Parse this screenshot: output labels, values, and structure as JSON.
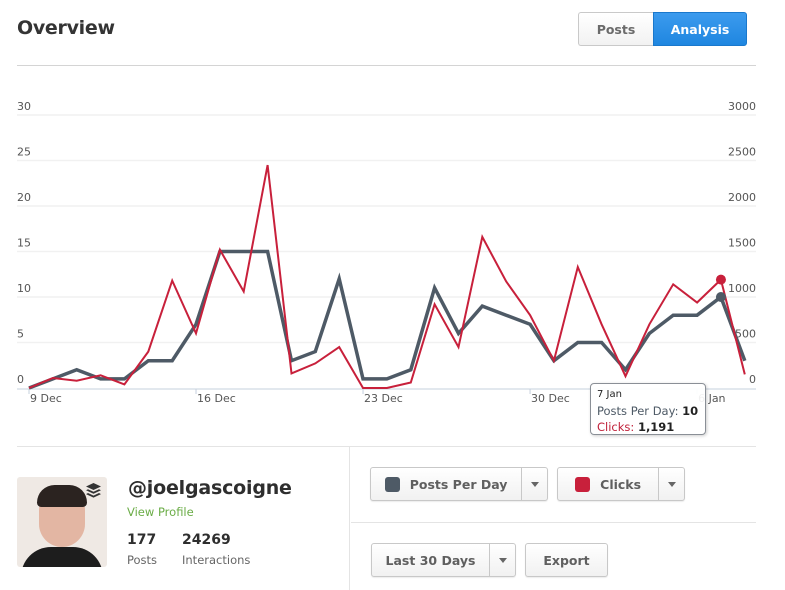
{
  "header": {
    "title": "Overview",
    "tabs": [
      {
        "label": "Posts",
        "active": false
      },
      {
        "label": "Analysis",
        "active": true
      }
    ]
  },
  "colors": {
    "posts_series": "#4e5a66",
    "clicks_series": "#c8203b",
    "accent": "#2a8ee6",
    "link": "#6aac46"
  },
  "chart_data": {
    "type": "line",
    "title": "",
    "x": [
      "9 Dec",
      "10 Dec",
      "11 Dec",
      "12 Dec",
      "13 Dec",
      "14 Dec",
      "15 Dec",
      "16 Dec",
      "17 Dec",
      "18 Dec",
      "19 Dec",
      "20 Dec",
      "21 Dec",
      "22 Dec",
      "23 Dec",
      "24 Dec",
      "25 Dec",
      "26 Dec",
      "27 Dec",
      "28 Dec",
      "29 Dec",
      "30 Dec",
      "31 Dec",
      "1 Jan",
      "2 Jan",
      "3 Jan",
      "4 Jan",
      "5 Jan",
      "6 Jan",
      "7 Jan",
      "8 Jan"
    ],
    "x_tick_labels": [
      "9 Dec",
      "16 Dec",
      "23 Dec",
      "30 Dec",
      "6 Jan"
    ],
    "series": [
      {
        "name": "Posts Per Day",
        "axis": "left",
        "color": "#4e5a66",
        "values": [
          0,
          1,
          2,
          1,
          1,
          3,
          3,
          7,
          15,
          15,
          15,
          3,
          4,
          12,
          1,
          1,
          2,
          11,
          6,
          9,
          8,
          7,
          3,
          5,
          5,
          2,
          6,
          8,
          8,
          10,
          3
        ]
      },
      {
        "name": "Clicks",
        "axis": "right",
        "color": "#c8203b",
        "values": [
          0,
          110,
          80,
          140,
          40,
          400,
          1180,
          600,
          1520,
          1060,
          2450,
          160,
          270,
          450,
          0,
          0,
          60,
          920,
          450,
          1660,
          1170,
          800,
          300,
          1330,
          700,
          130,
          700,
          1140,
          940,
          1191,
          150
        ]
      }
    ],
    "y_left": {
      "ticks": [
        0,
        5,
        10,
        15,
        20,
        25,
        30
      ],
      "ylim": [
        0,
        30
      ]
    },
    "y_right": {
      "ticks": [
        0,
        500,
        1000,
        1500,
        2000,
        2500,
        3000
      ],
      "ylim": [
        0,
        3000
      ]
    },
    "grid": true,
    "legend": "none",
    "xlabel": "",
    "ylabel": ""
  },
  "tooltip": {
    "date": "7 Jan",
    "posts_label": "Posts Per Day:",
    "posts_value": "10",
    "clicks_label": "Clicks:",
    "clicks_value": "1,191"
  },
  "profile": {
    "handle": "@joelgascoigne",
    "view_profile": "View Profile",
    "stats": [
      {
        "value": "177",
        "label": "Posts"
      },
      {
        "value": "24269",
        "label": "Interactions"
      }
    ]
  },
  "controls": {
    "metric1": "Posts Per Day",
    "metric2": "Clicks",
    "range": "Last 30 Days",
    "export": "Export"
  }
}
